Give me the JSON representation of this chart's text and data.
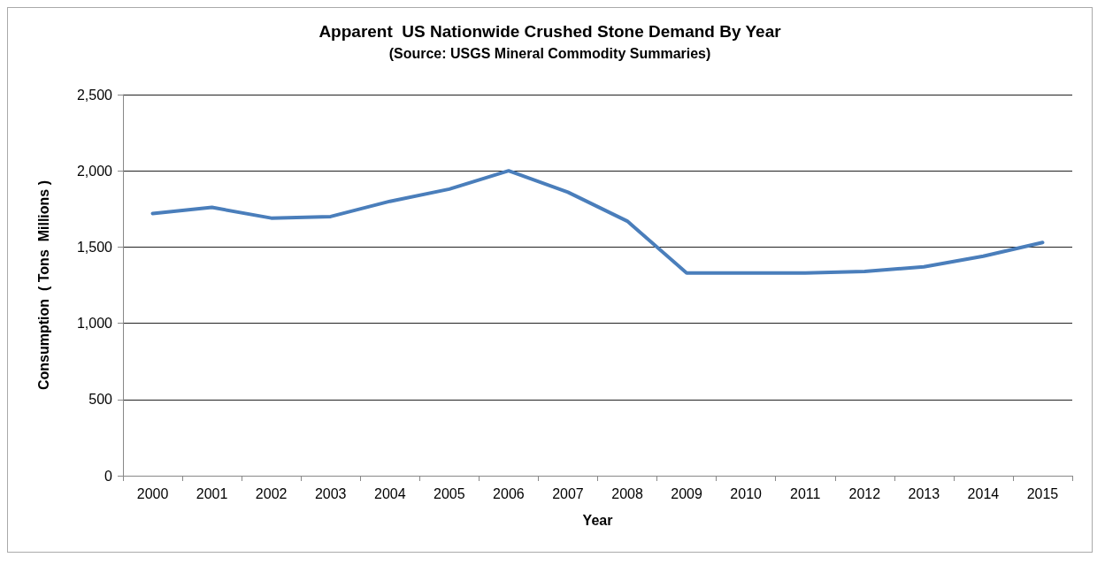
{
  "chart_data": {
    "type": "line",
    "title": "Apparent  US Nationwide Crushed Stone Demand By Year",
    "subtitle": "(Source: USGS Mineral Commodity Summaries)",
    "xlabel": "Year",
    "ylabel": "Consumption  ( Tons  Millions )",
    "categories": [
      "2000",
      "2001",
      "2002",
      "2003",
      "2004",
      "2005",
      "2006",
      "2007",
      "2008",
      "2009",
      "2010",
      "2011",
      "2012",
      "2013",
      "2014",
      "2015"
    ],
    "series": [
      {
        "color": "#4a7ebb",
        "values": [
          1720,
          1760,
          1690,
          1700,
          1800,
          1880,
          2000,
          1860,
          1670,
          1330,
          1330,
          1330,
          1340,
          1370,
          1440,
          1530
        ]
      }
    ],
    "ylim": [
      0,
      2500
    ],
    "yticks": [
      0,
      500,
      {
        "value": 1000,
        "label": "1,000"
      },
      {
        "value": 1500,
        "label": "1,500"
      },
      {
        "value": 2000,
        "label": "2,000"
      },
      {
        "value": 2500,
        "label": "2,500"
      }
    ],
    "grid": "y",
    "marker": "none",
    "line_style": "solid"
  }
}
